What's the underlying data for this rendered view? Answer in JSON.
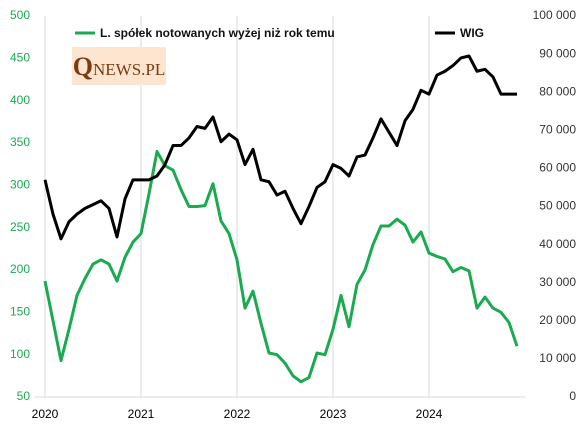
{
  "chart_data": {
    "type": "line",
    "annotation": "QNEWS.PL",
    "categories": [
      "2020",
      null,
      null,
      null,
      null,
      null,
      null,
      null,
      null,
      null,
      null,
      null,
      "2021",
      null,
      null,
      null,
      null,
      null,
      null,
      null,
      null,
      null,
      null,
      null,
      "2022",
      null,
      null,
      null,
      null,
      null,
      null,
      null,
      null,
      null,
      null,
      null,
      "2023",
      null,
      null,
      null,
      null,
      null,
      null,
      null,
      null,
      null,
      null,
      null,
      "2024",
      null,
      null,
      null,
      null,
      null,
      null,
      null,
      null,
      null,
      null,
      null
    ],
    "series": [
      {
        "name": "L. spółek notowanych wyżej niż rok temu",
        "color": "#1aaa50",
        "axis": "y",
        "values": [
          187,
          140,
          93,
          130,
          170,
          190,
          207,
          212,
          207,
          187,
          215,
          233,
          243,
          290,
          340,
          323,
          318,
          295,
          275,
          275,
          276,
          302,
          258,
          243,
          212,
          155,
          175,
          137,
          102,
          100,
          90,
          75,
          68,
          73,
          102,
          100,
          130,
          170,
          133,
          183,
          200,
          230,
          252,
          252,
          260,
          253,
          233,
          245,
          220,
          216,
          213,
          198,
          203,
          199,
          155,
          168,
          155,
          150,
          138,
          110
        ]
      },
      {
        "name": "WIG",
        "color": "#000000",
        "axis": "y2",
        "values": [
          57000,
          48000,
          41500,
          46000,
          48000,
          49500,
          50500,
          51500,
          49500,
          42000,
          52000,
          57000,
          57000,
          57000,
          58000,
          61000,
          66000,
          66000,
          68000,
          71000,
          70500,
          73500,
          67000,
          69000,
          67500,
          61000,
          65000,
          57000,
          56500,
          53000,
          54000,
          49500,
          45500,
          50000,
          55000,
          56500,
          61000,
          60000,
          58000,
          63000,
          63500,
          68000,
          73000,
          69500,
          66000,
          72500,
          75500,
          80500,
          79500,
          84500,
          85500,
          87000,
          89000,
          89500,
          85500,
          86000,
          84000,
          79500,
          79500,
          79500
        ]
      }
    ],
    "ylim": [
      50,
      500
    ],
    "yticks": [
      50,
      100,
      150,
      200,
      250,
      300,
      350,
      400,
      450,
      500
    ],
    "y2lim": [
      0,
      100000
    ],
    "y2ticks": [
      0,
      {
        "value": 10000,
        "label": "10 000"
      },
      {
        "value": 20000,
        "label": "20 000"
      },
      {
        "value": 30000,
        "label": "30 000"
      },
      {
        "value": 40000,
        "label": "40 000"
      },
      {
        "value": 50000,
        "label": "50 000"
      },
      {
        "value": 60000,
        "label": "60 000"
      },
      {
        "value": 70000,
        "label": "70 000"
      },
      {
        "value": 80000,
        "label": "80 000"
      },
      {
        "value": 90000,
        "label": "90 000"
      },
      {
        "value": 100000,
        "label": "100 000"
      }
    ],
    "grid": true
  }
}
